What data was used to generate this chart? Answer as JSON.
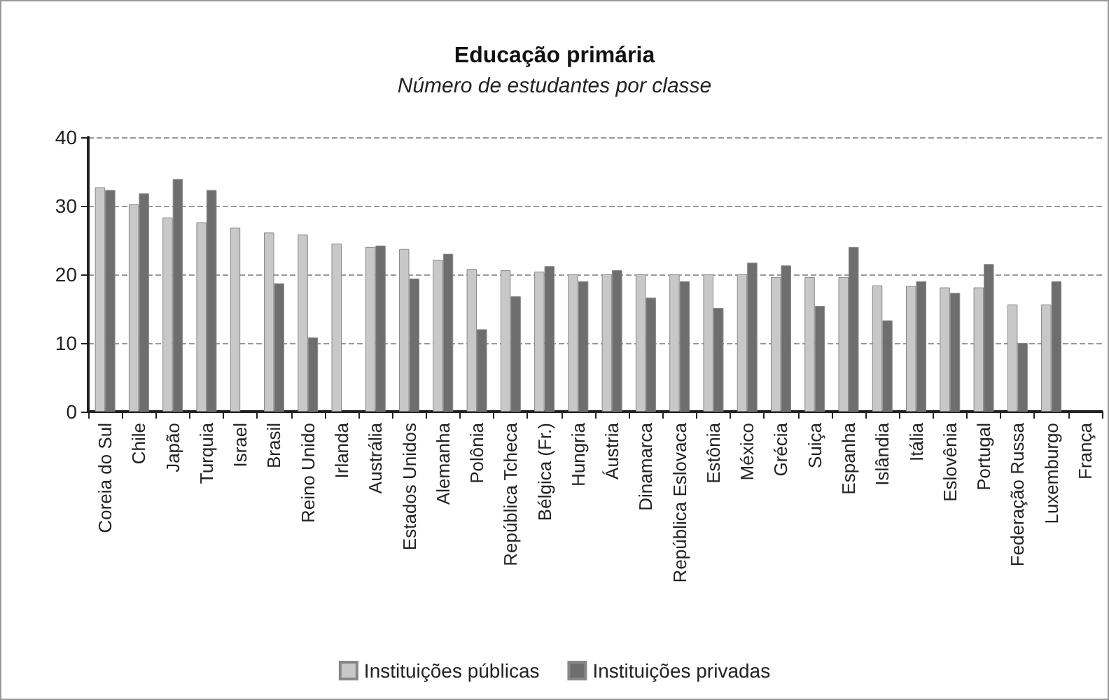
{
  "chart_data": {
    "type": "bar",
    "title": "Educação primária",
    "subtitle": "Número de estudantes por classe",
    "categories": [
      "Coreia do Sul",
      "Chile",
      "Japão",
      "Turquia",
      "Israel",
      "Brasil",
      "Reino Unido",
      "Irlanda",
      "Austrália",
      "Estados Unidos",
      "Alemanha",
      "Polônia",
      "República Tcheca",
      "Bélgica (Fr.)",
      "Hungria",
      "Áustria",
      "Dinamarca",
      "República Eslovaca",
      "Estônia",
      "México",
      "Grécia",
      "Suiça",
      "Espanha",
      "Islândia",
      "Itália",
      "Eslovênia",
      "Portugal",
      "Federação Russa",
      "Luxemburgo",
      "França"
    ],
    "series": [
      {
        "name": "Instituições públicas",
        "color": "#c8c8c8",
        "values": [
          32.7,
          30.2,
          28.3,
          27.6,
          26.8,
          26.1,
          25.8,
          24.5,
          24.0,
          23.7,
          22.1,
          20.8,
          20.6,
          20.4,
          20.0,
          20.0,
          20.0,
          20.0,
          20.0,
          20.0,
          19.6,
          19.6,
          19.6,
          18.4,
          18.3,
          18.1,
          18.1,
          15.6,
          15.6,
          null
        ]
      },
      {
        "name": "Instituições privadas",
        "color": "#6e6e6e",
        "values": [
          32.3,
          31.8,
          33.9,
          32.3,
          null,
          18.7,
          10.8,
          null,
          24.2,
          19.4,
          23.0,
          12.0,
          16.8,
          21.2,
          19.0,
          20.6,
          16.6,
          19.0,
          15.1,
          21.7,
          21.3,
          15.4,
          24.0,
          13.3,
          19.0,
          17.3,
          21.5,
          10.0,
          19.0,
          null
        ]
      }
    ],
    "ylim": [
      0,
      40
    ],
    "yticks": [
      0,
      10,
      20,
      30,
      40
    ],
    "grid": "y",
    "legend": "bottom"
  }
}
